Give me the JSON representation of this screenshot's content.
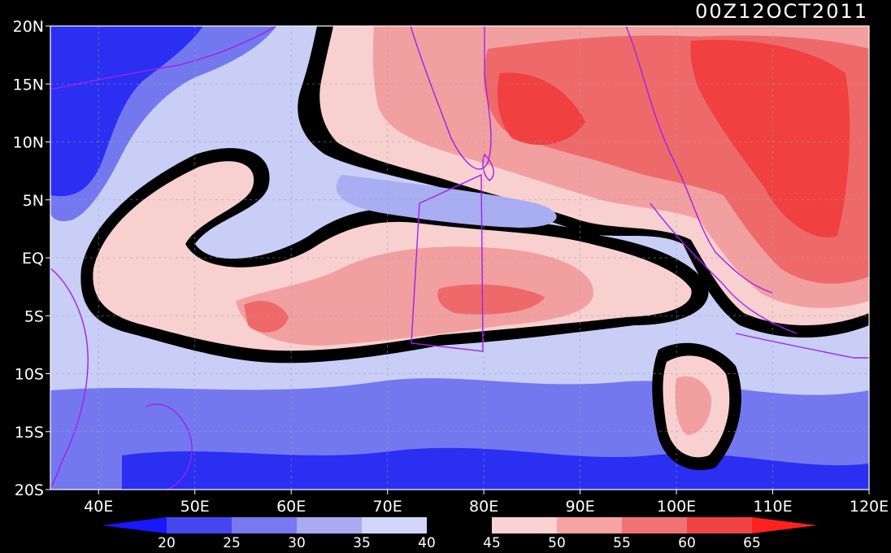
{
  "title": "00Z12OCT2011",
  "map": {
    "lon_range": [
      35,
      120
    ],
    "lat_range": [
      -20,
      20
    ],
    "x_ticks": [
      "40E",
      "50E",
      "60E",
      "70E",
      "80E",
      "90E",
      "100E",
      "110E",
      "120E"
    ],
    "y_ticks": [
      "20N",
      "15N",
      "10N",
      "5N",
      "EQ",
      "5S",
      "10S",
      "15S",
      "20S"
    ],
    "gridlines": true,
    "background": "#c8cef6",
    "coastline_color": "#a020f0"
  },
  "colorbar": {
    "labels": [
      "20",
      "25",
      "30",
      "35",
      "40",
      "45",
      "50",
      "55",
      "60",
      "65"
    ],
    "colors": [
      "#1818ff",
      "#4646f0",
      "#7878f0",
      "#a8aaf2",
      "#d2d6fb",
      "#000000",
      "#fad2d2",
      "#f5a3a3",
      "#f07272",
      "#f04444",
      "#ff2020"
    ]
  },
  "regions": {
    "deep_blue_color": "#2a2ff2",
    "mid_blue_color": "#7378ee",
    "light_blue_color": "#a9aef2",
    "black_color": "#000000",
    "pink_color": "#f9d0d0",
    "salmon_color": "#f29f9f",
    "red_color": "#ee6a6a",
    "deep_red_color": "#f04040"
  }
}
